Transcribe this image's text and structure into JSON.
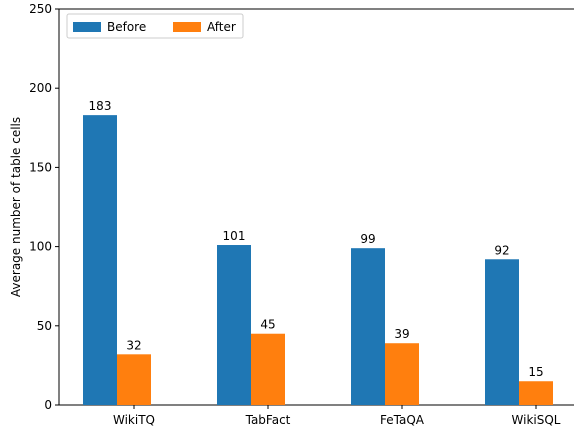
{
  "chart_data": {
    "type": "bar",
    "title": "",
    "xlabel": "",
    "ylabel": "Average number of table cells",
    "categories": [
      "WikiTQ",
      "TabFact",
      "FeTaQA",
      "WikiSQL"
    ],
    "series": [
      {
        "name": "Before",
        "values": [
          183,
          101,
          99,
          92
        ],
        "color": "#1f77b4"
      },
      {
        "name": "After",
        "values": [
          32,
          45,
          39,
          15
        ],
        "color": "#ff7f0e"
      }
    ],
    "ylim": [
      0,
      250
    ],
    "yticks": [
      0,
      50,
      100,
      150,
      200,
      250
    ],
    "grid": false,
    "legend_position": "top-left"
  }
}
